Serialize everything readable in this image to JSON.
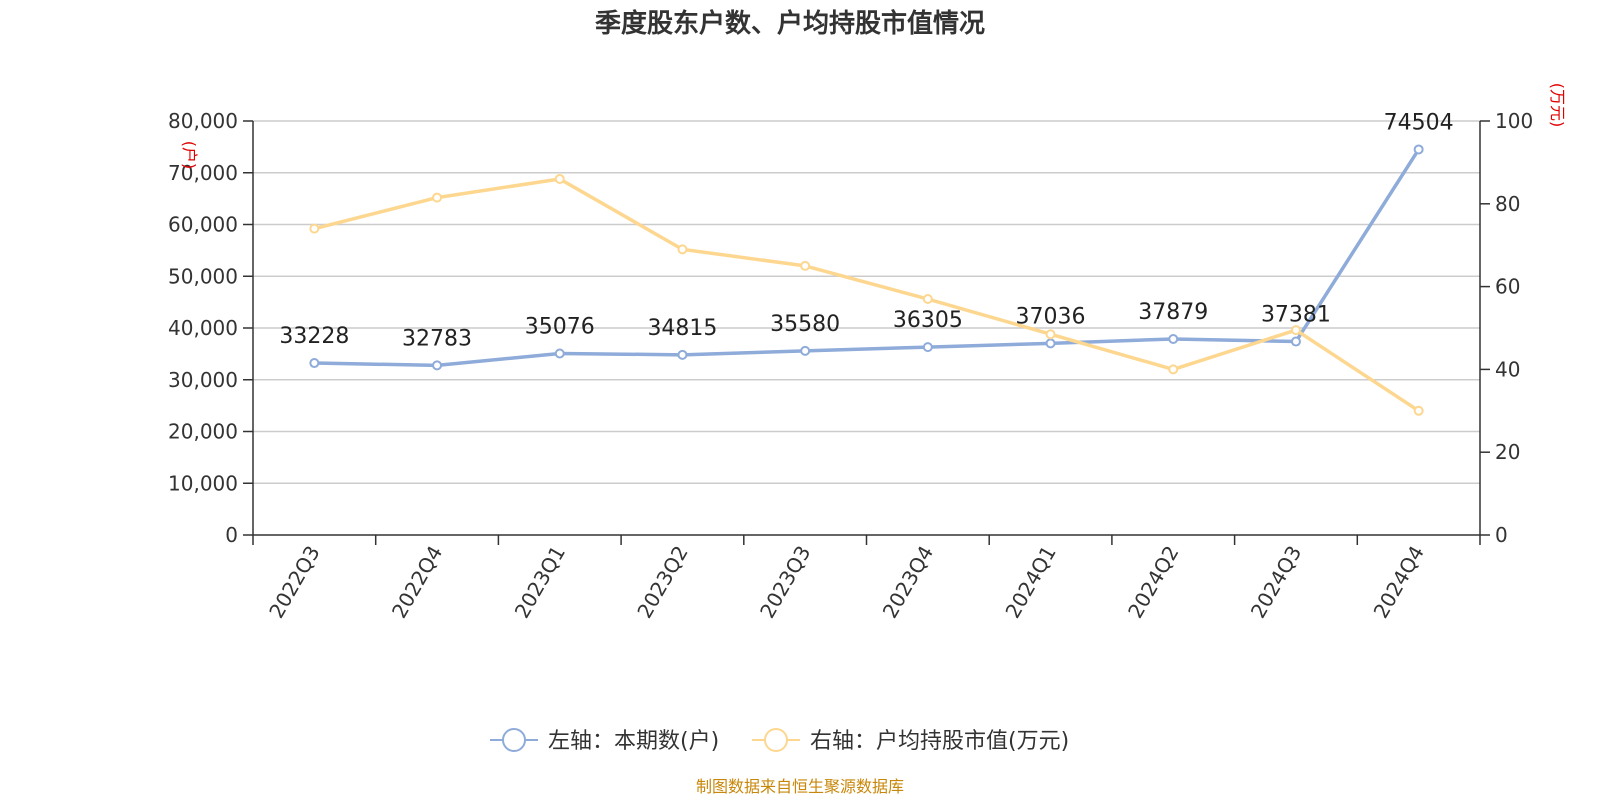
{
  "title": "季度股东户数、户均持股市值情况",
  "source": "制图数据来自恒生聚源数据库",
  "colors": {
    "left_series": "#8eabd9",
    "right_series": "#fdd78f",
    "unit_label": "#e00000",
    "source": "#c8870a"
  },
  "chart_data": {
    "type": "line",
    "title": "季度股东户数、户均持股市值情况",
    "categories": [
      "2022Q3",
      "2022Q4",
      "2023Q1",
      "2023Q2",
      "2023Q3",
      "2023Q4",
      "2024Q1",
      "2024Q2",
      "2024Q3",
      "2024Q4"
    ],
    "y_left": {
      "unit": "(户)",
      "range": [
        0,
        80000
      ],
      "ticks": [
        "0",
        "10,000",
        "20,000",
        "30,000",
        "40,000",
        "50,000",
        "60,000",
        "70,000",
        "80,000"
      ],
      "tick_values": [
        0,
        10000,
        20000,
        30000,
        40000,
        50000,
        60000,
        70000,
        80000
      ]
    },
    "y_right": {
      "unit": "(万元)",
      "range": [
        0,
        100
      ],
      "ticks": [
        "0",
        "20",
        "40",
        "60",
        "80",
        "100"
      ],
      "tick_values": [
        0,
        20,
        40,
        60,
        80,
        100
      ]
    },
    "series": [
      {
        "name": "左轴：本期数(户)",
        "axis": "left",
        "values": [
          33228,
          32783,
          35076,
          34815,
          35580,
          36305,
          37036,
          37879,
          37381,
          74504
        ],
        "labels": [
          "33228",
          "32783",
          "35076",
          "34815",
          "35580",
          "36305",
          "37036",
          "37879",
          "37381",
          "74504"
        ]
      },
      {
        "name": "右轴：户均持股市值(万元)",
        "axis": "right",
        "values": [
          74.0,
          81.5,
          86.0,
          69.0,
          65.0,
          57.0,
          48.5,
          40.0,
          49.5,
          30.0
        ]
      }
    ],
    "grid": true,
    "legend_position": "bottom"
  }
}
